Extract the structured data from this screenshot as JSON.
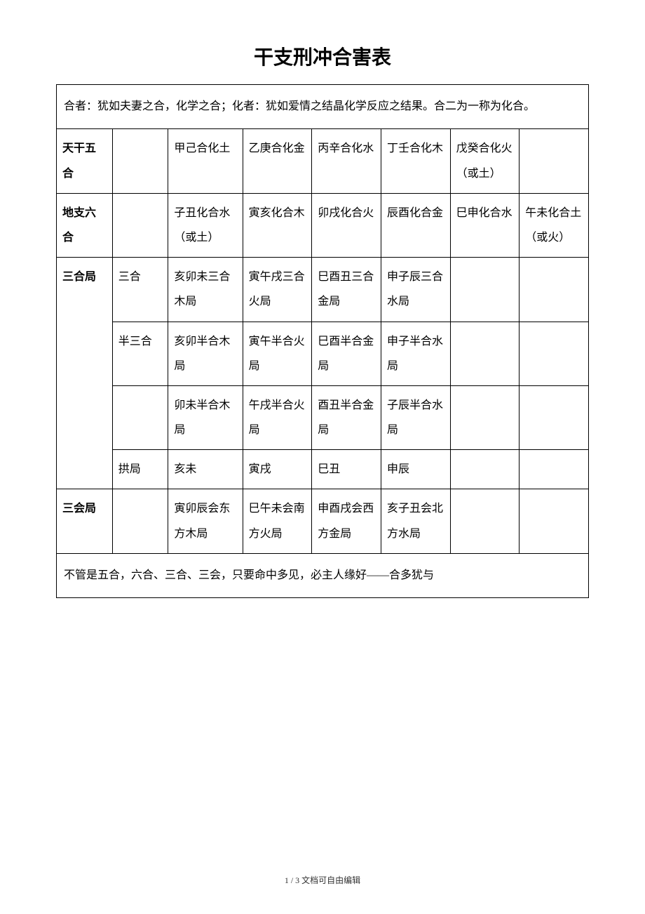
{
  "title": "干支刑冲合害表",
  "intro": "合者：犹如夫妻之合，化学之合；化者：犹如爱情之结晶化学反应之结果。合二为一称为化合。",
  "rows": {
    "tiangan": {
      "label": "天干五合",
      "c1": "",
      "c2": "甲己合化土",
      "c3": "乙庚合化金",
      "c4": "丙辛合化水",
      "c5": "丁壬合化木",
      "c6": "戊癸合化火（或土）",
      "c7": ""
    },
    "dizhi": {
      "label": "地支六合",
      "c1": "",
      "c2": "子丑化合水（或土）",
      "c3": "寅亥化合木",
      "c4": "卯戌化合火",
      "c5": "辰酉化合金",
      "c6": "巳申化合水",
      "c7": "午未化合土（或火）"
    },
    "sanhe": {
      "label": "三合局",
      "r1": {
        "c1": "三合",
        "c2": "亥卯未三合木局",
        "c3": "寅午戌三合火局",
        "c4": "巳酉丑三合金局",
        "c5": "申子辰三合水局",
        "c6": "",
        "c7": ""
      },
      "r2": {
        "c1": "半三合",
        "c2": "亥卯半合木局",
        "c3": "寅午半合火局",
        "c4": "巳酉半合金局",
        "c5": "申子半合水局",
        "c6": "",
        "c7": ""
      },
      "r3": {
        "c1": "",
        "c2": "卯未半合木局",
        "c3": "午戌半合火局",
        "c4": "酉丑半合金局",
        "c5": "子辰半合水局",
        "c6": "",
        "c7": ""
      },
      "r4": {
        "c1": "拱局",
        "c2": "亥未",
        "c3": "寅戌",
        "c4": "巳丑",
        "c5": "申辰",
        "c6": "",
        "c7": ""
      }
    },
    "sanhui": {
      "label": "三会局",
      "c1": "",
      "c2": "寅卯辰会东方木局",
      "c3": "巳午未会南方火局",
      "c4": "申酉戌会西方金局",
      "c5": "亥子丑会北方水局",
      "c6": "",
      "c7": ""
    }
  },
  "note": "不管是五合，六合、三合、三会，只要命中多见，必主人缘好——合多犹与",
  "footer": "1 / 3 文档可自由编辑",
  "colors": {
    "text": "#000000",
    "border": "#000000",
    "background": "#ffffff"
  }
}
